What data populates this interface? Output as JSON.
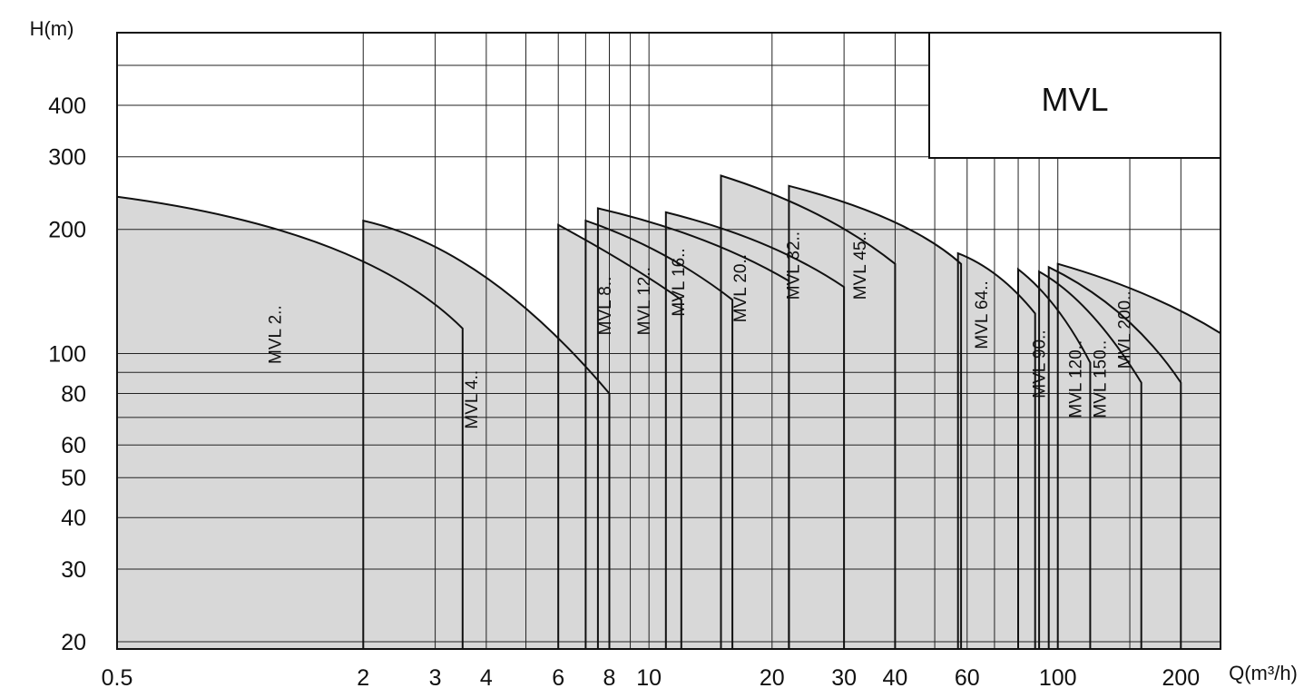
{
  "chart_data": {
    "type": "area",
    "title": "MVL",
    "xlabel": "Q(m³/h)",
    "ylabel": "H(m)",
    "x_scale": "log",
    "y_scale": "log",
    "xlim": [
      0.5,
      250
    ],
    "ylim": [
      19.2,
      600
    ],
    "grid": true,
    "legend_placement": "top-right",
    "x_tick_labels": [
      {
        "value": 0.5,
        "label": "0.5"
      },
      {
        "value": 2,
        "label": "2"
      },
      {
        "value": 3,
        "label": "3"
      },
      {
        "value": 4,
        "label": "4"
      },
      {
        "value": 6,
        "label": "6"
      },
      {
        "value": 8,
        "label": "8"
      },
      {
        "value": 10,
        "label": "10"
      },
      {
        "value": 20,
        "label": "20"
      },
      {
        "value": 30,
        "label": "30"
      },
      {
        "value": 40,
        "label": "40"
      },
      {
        "value": 60,
        "label": "60"
      },
      {
        "value": 100,
        "label": "100"
      },
      {
        "value": 200,
        "label": "200"
      }
    ],
    "y_tick_labels": [
      {
        "value": 400,
        "label": "400"
      },
      {
        "value": 300,
        "label": "300"
      },
      {
        "value": 200,
        "label": "200"
      },
      {
        "value": 100,
        "label": "100"
      },
      {
        "value": 80,
        "label": "80"
      },
      {
        "value": 60,
        "label": "60"
      },
      {
        "value": 50,
        "label": "50"
      },
      {
        "value": 40,
        "label": "40"
      },
      {
        "value": 30,
        "label": "30"
      },
      {
        "value": 20,
        "label": "20"
      }
    ],
    "x_grid": [
      2,
      3,
      4,
      5,
      6,
      7,
      8,
      9,
      10,
      20,
      30,
      40,
      50,
      60,
      70,
      80,
      90,
      100,
      150,
      200
    ],
    "y_grid": [
      20,
      30,
      40,
      50,
      60,
      70,
      80,
      90,
      100,
      200,
      300,
      400,
      500
    ],
    "series": [
      {
        "name": "MVL 2..",
        "x": [
          0.5,
          2,
          3.5
        ],
        "y": [
          240,
          200,
          115
        ]
      },
      {
        "name": "MVL 4..",
        "x": [
          2,
          4,
          8
        ],
        "y": [
          210,
          180,
          80
        ]
      },
      {
        "name": "MVL 8..",
        "x": [
          6,
          9,
          12
        ],
        "y": [
          205,
          165,
          135
        ]
      },
      {
        "name": "MVL 12..",
        "x": [
          7,
          11,
          16
        ],
        "y": [
          210,
          180,
          135
        ]
      },
      {
        "name": "MVL 16..",
        "x": [
          7.5,
          14,
          22
        ],
        "y": [
          225,
          195,
          150
        ]
      },
      {
        "name": "MVL 20..",
        "x": [
          11,
          20,
          30
        ],
        "y": [
          220,
          190,
          145
        ]
      },
      {
        "name": "MVL 32..",
        "x": [
          15,
          27,
          40
        ],
        "y": [
          270,
          225,
          165
        ]
      },
      {
        "name": "MVL 45..",
        "x": [
          22,
          43,
          58
        ],
        "y": [
          255,
          215,
          165
        ]
      },
      {
        "name": "MVL 64..",
        "x": [
          57,
          72,
          88
        ],
        "y": [
          175,
          160,
          125
        ]
      },
      {
        "name": "MVL 90..",
        "x": [
          80,
          100,
          120
        ],
        "y": [
          160,
          135,
          95
        ]
      },
      {
        "name": "MVL 120..",
        "x": [
          90,
          120,
          160
        ],
        "y": [
          158,
          135,
          85
        ]
      },
      {
        "name": "MVL 150..",
        "x": [
          95,
          150,
          200
        ],
        "y": [
          162,
          130,
          85
        ]
      },
      {
        "name": "MVL 200..",
        "x": [
          100,
          170,
          250
        ],
        "y": [
          165,
          142,
          112
        ]
      }
    ]
  }
}
